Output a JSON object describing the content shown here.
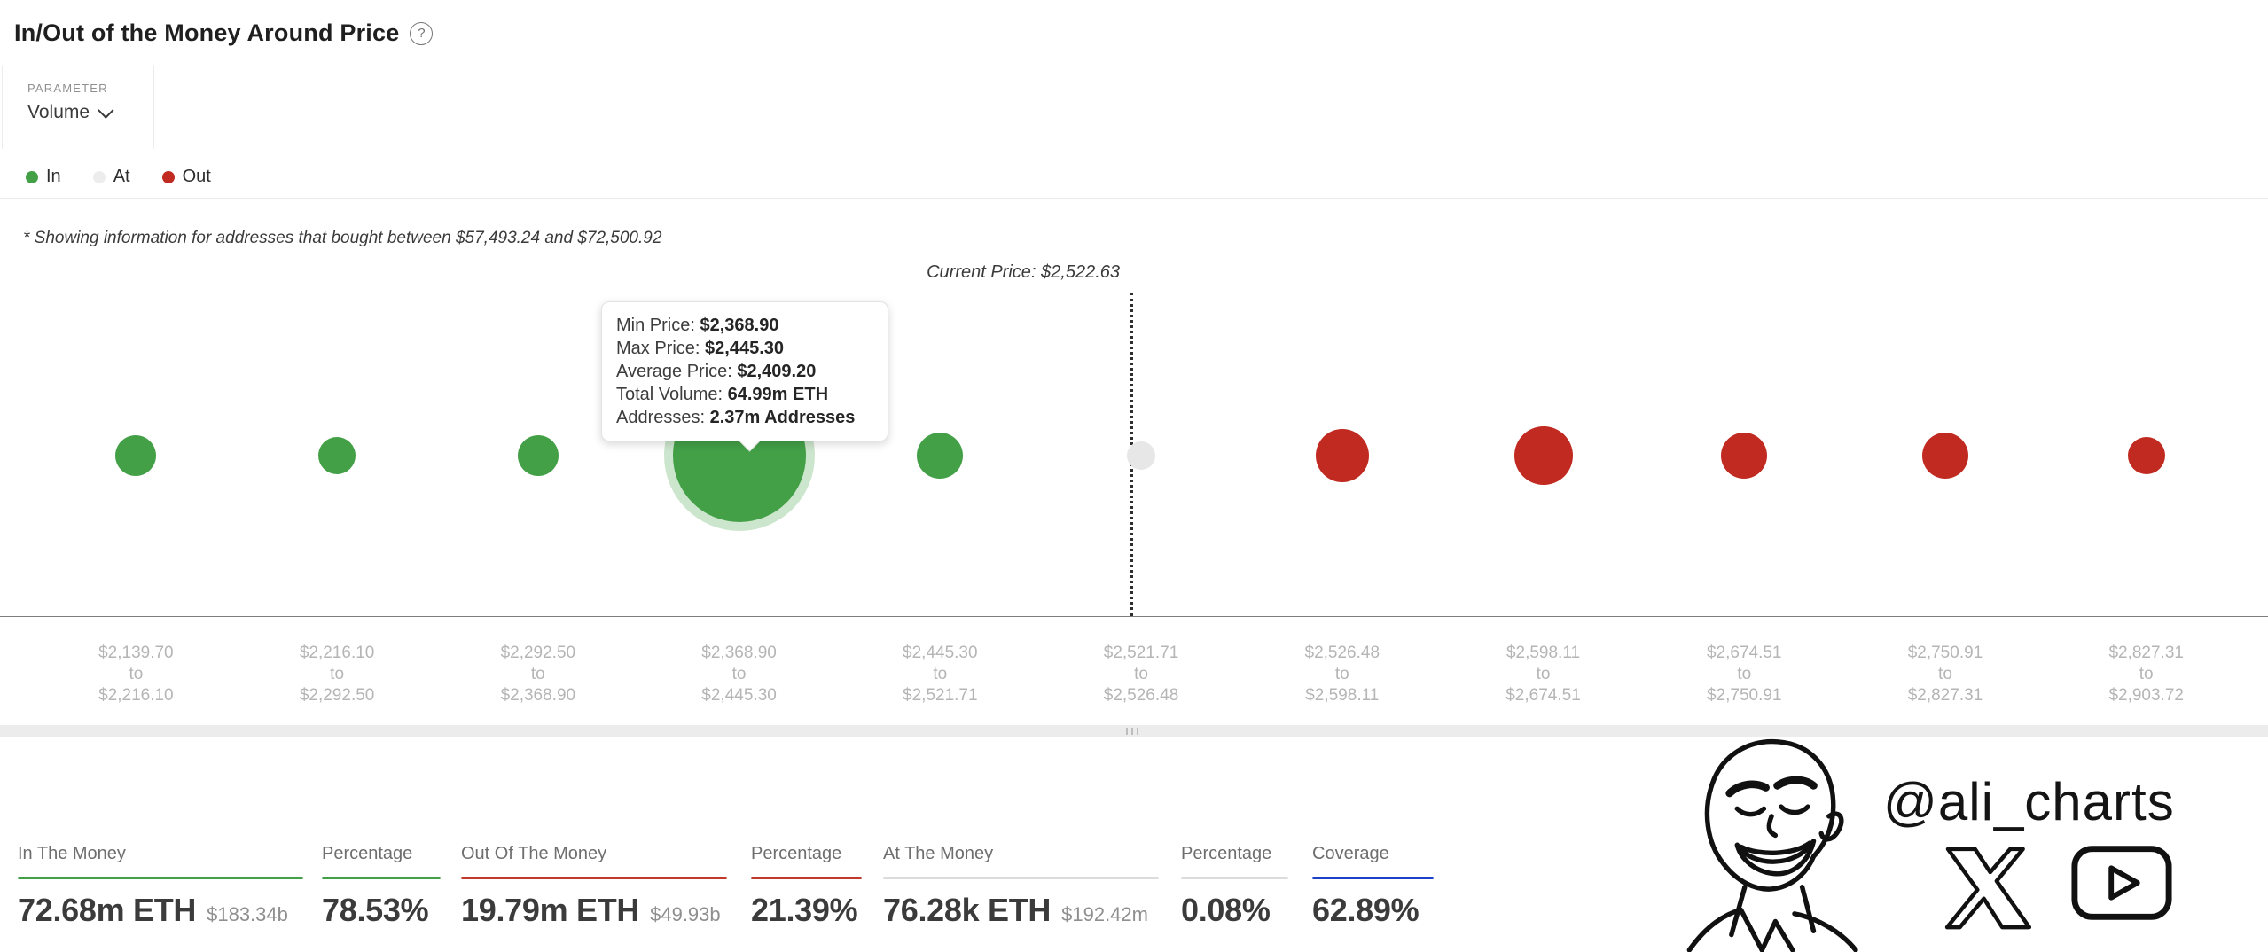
{
  "header": {
    "title": "In/Out of the Money Around Price",
    "help_icon_glyph": "?",
    "parameter": {
      "label": "PARAMETER",
      "value": "Volume"
    },
    "legend": [
      {
        "label": "In",
        "color": "#43A047"
      },
      {
        "label": "At",
        "color": "#EDEDED"
      },
      {
        "label": "Out",
        "color": "#C02A21"
      }
    ],
    "note": "* Showing information for addresses that bought between $57,493.24 and $72,500.92"
  },
  "chart_data": {
    "type": "scatter",
    "subtype": "in-out-of-the-money-bubbles",
    "title": "In/Out of the Money Around Price",
    "parameter": "Volume",
    "current_price": 2522.63,
    "current_price_label": "Current Price: $2,522.63",
    "tick_word": "to",
    "legend_position": "top-left",
    "series": [
      {
        "range_from": "$2,139.70",
        "range_to": "$2,216.10",
        "status": "in",
        "bubble_radius_px": 23,
        "selected": false
      },
      {
        "range_from": "$2,216.10",
        "range_to": "$2,292.50",
        "status": "in",
        "bubble_radius_px": 21,
        "selected": false
      },
      {
        "range_from": "$2,292.50",
        "range_to": "$2,368.90",
        "status": "in",
        "bubble_radius_px": 23,
        "selected": false
      },
      {
        "range_from": "$2,368.90",
        "range_to": "$2,445.30",
        "status": "in",
        "bubble_radius_px": 75,
        "selected": true
      },
      {
        "range_from": "$2,445.30",
        "range_to": "$2,521.71",
        "status": "in",
        "bubble_radius_px": 26,
        "selected": false
      },
      {
        "range_from": "$2,521.71",
        "range_to": "$2,526.48",
        "status": "at",
        "bubble_radius_px": 16,
        "selected": false
      },
      {
        "range_from": "$2,526.48",
        "range_to": "$2,598.11",
        "status": "out",
        "bubble_radius_px": 30,
        "selected": false
      },
      {
        "range_from": "$2,598.11",
        "range_to": "$2,674.51",
        "status": "out",
        "bubble_radius_px": 33,
        "selected": false
      },
      {
        "range_from": "$2,674.51",
        "range_to": "$2,750.91",
        "status": "out",
        "bubble_radius_px": 26,
        "selected": false
      },
      {
        "range_from": "$2,750.91",
        "range_to": "$2,827.31",
        "status": "out",
        "bubble_radius_px": 26,
        "selected": false
      },
      {
        "range_from": "$2,827.31",
        "range_to": "$2,903.72",
        "status": "out",
        "bubble_radius_px": 21,
        "selected": false
      }
    ],
    "selected_tooltip": {
      "rows": [
        {
          "label": "Min Price: ",
          "value": "$2,368.90"
        },
        {
          "label": "Max Price: ",
          "value": "$2,445.30"
        },
        {
          "label": "Average Price: ",
          "value": "$2,409.20"
        },
        {
          "label": "Total Volume: ",
          "value": "64.99m ETH"
        },
        {
          "label": "Addresses: ",
          "value": "2.37m Addresses"
        }
      ]
    },
    "colors": {
      "in": "#43A047",
      "at": "#E7E7E7",
      "out": "#C02A21"
    }
  },
  "stats": [
    {
      "label": "In The Money",
      "value": "72.68m ETH",
      "secondary": "$183.34b",
      "underline_color": "#43A047"
    },
    {
      "label": "Percentage",
      "value": "78.53%",
      "secondary": "",
      "underline_color": "#43A047"
    },
    {
      "label": "Out Of The Money",
      "value": "19.79m ETH",
      "secondary": "$49.93b",
      "underline_color": "#C0392B"
    },
    {
      "label": "Percentage",
      "value": "21.39%",
      "secondary": "",
      "underline_color": "#C0392B"
    },
    {
      "label": "At The Money",
      "value": "76.28k ETH",
      "secondary": "$192.42m",
      "underline_color": "#DCDCDC"
    },
    {
      "label": "Percentage",
      "value": "0.08%",
      "secondary": "",
      "underline_color": "#DCDCDC"
    },
    {
      "label": "Coverage",
      "value": "62.89%",
      "secondary": "",
      "underline_color": "#1A41C8"
    }
  ],
  "watermark": {
    "handle": "@ali_charts"
  }
}
